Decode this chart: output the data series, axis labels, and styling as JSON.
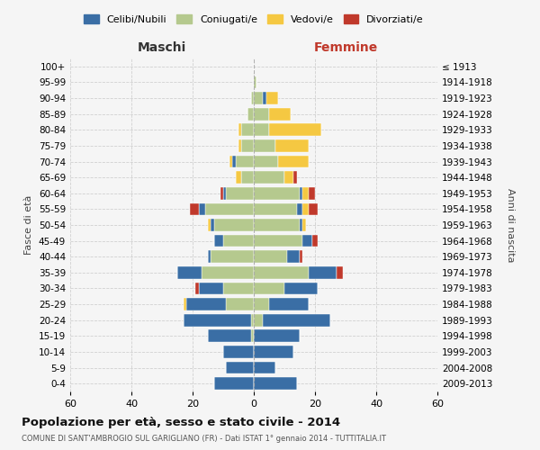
{
  "age_groups": [
    "0-4",
    "5-9",
    "10-14",
    "15-19",
    "20-24",
    "25-29",
    "30-34",
    "35-39",
    "40-44",
    "45-49",
    "50-54",
    "55-59",
    "60-64",
    "65-69",
    "70-74",
    "75-79",
    "80-84",
    "85-89",
    "90-94",
    "95-99",
    "100+"
  ],
  "birth_years": [
    "2009-2013",
    "2004-2008",
    "1999-2003",
    "1994-1998",
    "1989-1993",
    "1984-1988",
    "1979-1983",
    "1974-1978",
    "1969-1973",
    "1964-1968",
    "1959-1963",
    "1954-1958",
    "1949-1953",
    "1944-1948",
    "1939-1943",
    "1934-1938",
    "1929-1933",
    "1924-1928",
    "1919-1923",
    "1914-1918",
    "≤ 1913"
  ],
  "males": {
    "celibi": [
      13,
      9,
      10,
      14,
      22,
      13,
      8,
      8,
      1,
      3,
      1,
      2,
      1,
      0,
      1,
      0,
      0,
      0,
      0,
      0,
      0
    ],
    "coniugati": [
      0,
      0,
      0,
      1,
      1,
      9,
      10,
      17,
      14,
      10,
      13,
      16,
      9,
      4,
      6,
      4,
      4,
      2,
      1,
      0,
      0
    ],
    "vedovi": [
      0,
      0,
      0,
      0,
      0,
      1,
      0,
      0,
      0,
      0,
      1,
      0,
      0,
      2,
      1,
      1,
      1,
      0,
      0,
      0,
      0
    ],
    "divorziati": [
      0,
      0,
      0,
      0,
      0,
      0,
      1,
      0,
      0,
      0,
      0,
      3,
      1,
      0,
      0,
      0,
      0,
      0,
      0,
      0,
      0
    ]
  },
  "females": {
    "nubili": [
      14,
      7,
      13,
      15,
      22,
      13,
      11,
      9,
      4,
      3,
      1,
      2,
      1,
      0,
      0,
      0,
      0,
      0,
      1,
      0,
      0
    ],
    "coniugate": [
      0,
      0,
      0,
      0,
      3,
      5,
      10,
      18,
      11,
      16,
      15,
      14,
      15,
      10,
      8,
      7,
      5,
      5,
      3,
      1,
      0
    ],
    "vedove": [
      0,
      0,
      0,
      0,
      0,
      0,
      0,
      0,
      0,
      0,
      1,
      2,
      2,
      3,
      10,
      11,
      17,
      7,
      4,
      0,
      0
    ],
    "divorziate": [
      0,
      0,
      0,
      0,
      0,
      0,
      0,
      2,
      1,
      2,
      0,
      3,
      2,
      1,
      0,
      0,
      0,
      0,
      0,
      0,
      0
    ]
  },
  "colors": {
    "celibi": "#3a6ea5",
    "coniugati": "#b5c98e",
    "vedovi": "#f5c842",
    "divorziati": "#c0392b"
  },
  "title": "Popolazione per età, sesso e stato civile - 2014",
  "subtitle": "COMUNE DI SANT'AMBROGIO SUL GARIGLIANO (FR) - Dati ISTAT 1° gennaio 2014 - TUTTITALIA.IT",
  "ylabel_left": "Fasce di età",
  "ylabel_right": "Anni di nascita",
  "xlim": 60,
  "background_color": "#f5f5f5",
  "grid_color": "#cccccc"
}
